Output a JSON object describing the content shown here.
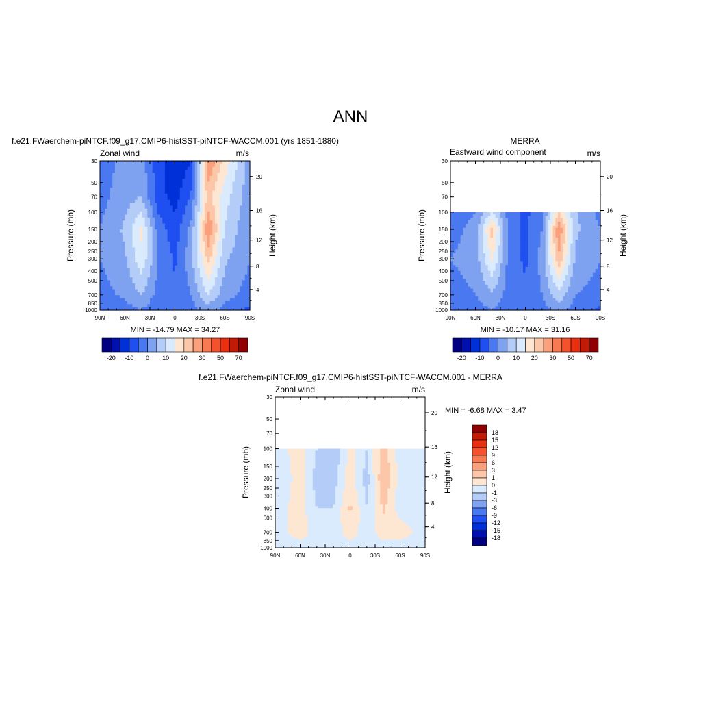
{
  "figure": {
    "title": "ANN"
  },
  "colors": {
    "wind_scale": [
      "#000080",
      "#0010b0",
      "#0030d8",
      "#1f4ff0",
      "#4a78f0",
      "#7fa2f0",
      "#b4ccf8",
      "#daebfe",
      "#fde7d3",
      "#fcc6a8",
      "#fba07c",
      "#f87a52",
      "#f6512d",
      "#e83010",
      "#c11b05",
      "#900000"
    ],
    "diff_scale": [
      "#000080",
      "#0010b0",
      "#0030d8",
      "#1f4ff0",
      "#4a78f0",
      "#7fa2f0",
      "#b4ccf8",
      "#daebfe",
      "#fde7d3",
      "#fcc6a8",
      "#fba07c",
      "#f87a52",
      "#f6512d",
      "#e83010",
      "#c11b05",
      "#900000"
    ]
  },
  "axes_common": {
    "ylabel": "Pressure (mb)",
    "ylabel_right": "Height (km)",
    "xticks": [
      "90N",
      "60N",
      "30N",
      "0",
      "30S",
      "60S",
      "90S"
    ],
    "pressure_ticks": [
      "30",
      "50",
      "70",
      "100",
      "150",
      "200",
      "250",
      "300",
      "400",
      "500",
      "700",
      "850",
      "1000"
    ],
    "height_ticks": [
      "4",
      "8",
      "12",
      "16",
      "20"
    ]
  },
  "chart_data": [
    {
      "id": "model",
      "type": "heatmap",
      "title": "f.e21.FWaerchem-piNTCF.f09_g17.CMIP6-histSST-piNTCF-WACCM.001 (yrs 1851-1880)",
      "left_label": "Zonal wind",
      "units": "m/s",
      "stats": "MIN = -14.79  MAX =  34.27",
      "colorbar_labels": [
        "-20",
        "-10",
        "0",
        "10",
        "20",
        "30",
        "50",
        "70"
      ],
      "data_range_mb": [
        30,
        1000
      ],
      "field_m_per_s": {
        "lat": [
          90,
          60,
          40,
          20,
          0,
          -20,
          -40,
          -60,
          -90
        ],
        "p_mb": [
          30,
          70,
          150,
          300,
          700,
          1000
        ],
        "values": [
          [
            -2,
            1,
            2,
            -8,
            -14,
            -10,
            30,
            18,
            2
          ],
          [
            -2,
            3,
            5,
            -8,
            -12,
            -4,
            22,
            12,
            2
          ],
          [
            0,
            6,
            16,
            -2,
            -8,
            2,
            30,
            10,
            0
          ],
          [
            0,
            4,
            14,
            0,
            -6,
            4,
            22,
            6,
            0
          ],
          [
            -2,
            1,
            5,
            -2,
            -4,
            0,
            10,
            2,
            -2
          ],
          [
            -4,
            -2,
            0,
            -4,
            -4,
            -2,
            2,
            -2,
            -6
          ]
        ]
      }
    },
    {
      "id": "obs",
      "type": "heatmap",
      "title": "MERRA",
      "left_label": "Eastward wind component",
      "units": "m/s",
      "stats": "MIN = -10.17  MAX =  31.16",
      "colorbar_labels": [
        "-20",
        "-10",
        "0",
        "10",
        "20",
        "30",
        "50",
        "70"
      ],
      "data_range_mb": [
        100,
        1000
      ],
      "field_m_per_s": {
        "lat": [
          90,
          60,
          40,
          20,
          0,
          -20,
          -40,
          -60,
          -90
        ],
        "p_mb": [
          100,
          150,
          300,
          700,
          1000
        ],
        "values": [
          [
            -4,
            0,
            10,
            -2,
            -6,
            -2,
            20,
            6,
            -2
          ],
          [
            -2,
            2,
            22,
            -2,
            -6,
            0,
            30,
            6,
            0
          ],
          [
            0,
            2,
            16,
            -2,
            -6,
            2,
            24,
            4,
            0
          ],
          [
            -2,
            0,
            4,
            -2,
            -4,
            0,
            8,
            0,
            -2
          ],
          [
            -4,
            -2,
            0,
            -4,
            -4,
            -2,
            2,
            -2,
            -6
          ]
        ]
      }
    },
    {
      "id": "diff",
      "type": "heatmap",
      "title": "f.e21.FWaerchem-piNTCF.f09_g17.CMIP6-histSST-piNTCF-WACCM.001 - MERRA",
      "left_label": "Zonal wind",
      "units": "m/s",
      "stats": "MIN =  -6.68  MAX =   3.47",
      "colorbar_labels": [
        "18",
        "15",
        "12",
        "9",
        "6",
        "3",
        "1",
        "0",
        "-1",
        "-3",
        "-6",
        "-9",
        "-12",
        "-15",
        "-18"
      ],
      "data_range_mb": [
        100,
        1000
      ],
      "field_m_per_s": {
        "lat": [
          90,
          60,
          40,
          20,
          0,
          -20,
          -40,
          -60,
          -90
        ],
        "p_mb": [
          100,
          200,
          400,
          700,
          1000
        ],
        "values": [
          [
            -0.5,
            0.5,
            -1,
            -2,
            0.5,
            -1,
            1.5,
            -0.5,
            -0.5
          ],
          [
            -1,
            0.5,
            -1.5,
            -1.5,
            0.5,
            -1.5,
            2,
            -0.5,
            -0.5
          ],
          [
            -0.5,
            0.5,
            -1,
            -1,
            1.2,
            -1,
            1.2,
            -0.5,
            -0.5
          ],
          [
            -0.5,
            0.5,
            -0.5,
            -0.5,
            0.5,
            -0.5,
            0.5,
            0.5,
            -0.5
          ],
          [
            -0.5,
            -0.5,
            -0.5,
            -0.5,
            -0.5,
            -0.5,
            -0.5,
            -0.5,
            -0.5
          ]
        ]
      }
    }
  ]
}
